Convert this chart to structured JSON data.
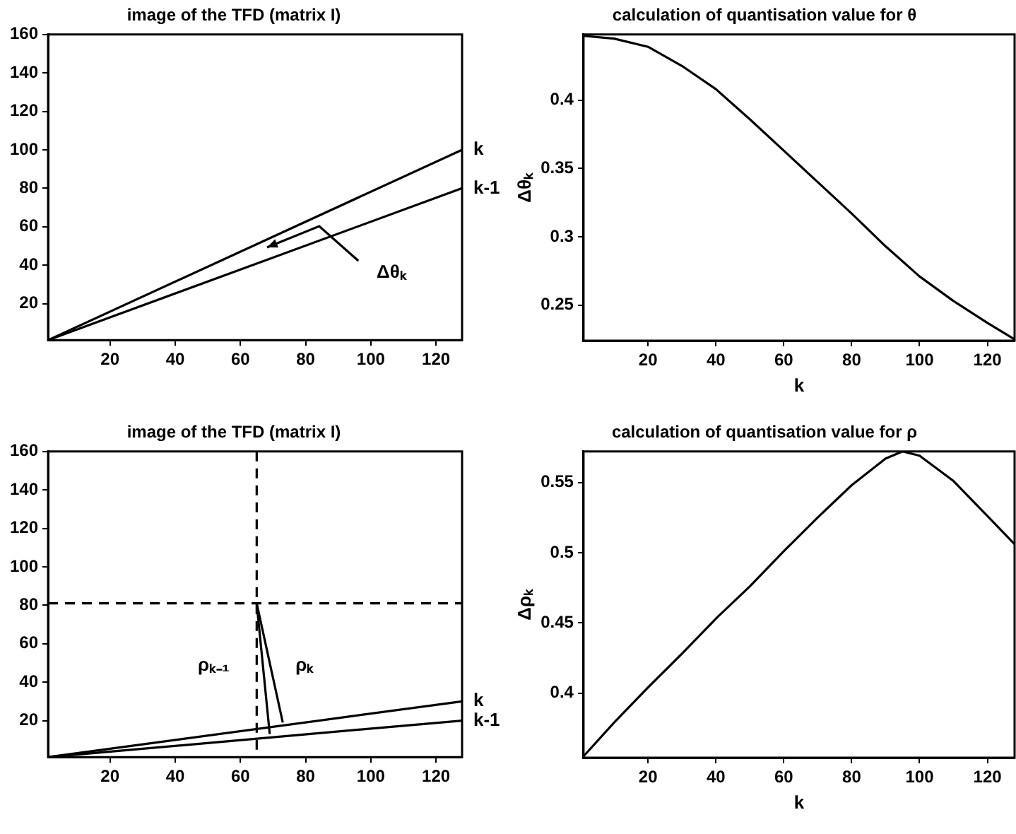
{
  "chart_data": [
    {
      "type": "line",
      "title": "image of the TFD (matrix I)",
      "x": [
        1,
        128
      ],
      "marker": "none",
      "series": [
        {
          "name": "k",
          "color": "#000000",
          "values": [
            1,
            100
          ]
        },
        {
          "name": "k-1",
          "color": "#000000",
          "values": [
            1,
            80
          ]
        }
      ],
      "xlim": [
        1,
        128
      ],
      "xticks": [
        20,
        40,
        60,
        80,
        100,
        120
      ],
      "ylim": [
        1,
        160
      ],
      "yticks": [
        20,
        40,
        60,
        80,
        100,
        120,
        140,
        160
      ],
      "annotations": [
        "Δθₖ"
      ]
    },
    {
      "type": "line",
      "title": "calculation of quantisation value for θ",
      "xlabel": "k",
      "ylabel": "Δθₖ",
      "marker": "none",
      "x": [
        1,
        10,
        20,
        30,
        40,
        50,
        60,
        70,
        80,
        90,
        100,
        110,
        120,
        128
      ],
      "series": [
        {
          "color": "#000000",
          "values": [
            0.447,
            0.445,
            0.439,
            0.425,
            0.408,
            0.386,
            0.363,
            0.34,
            0.317,
            0.293,
            0.271,
            0.253,
            0.237,
            0.225
          ]
        }
      ],
      "xlim": [
        1,
        128
      ],
      "xticks": [
        20,
        40,
        60,
        80,
        100,
        120
      ],
      "ylim": [
        0.224,
        0.448
      ],
      "yticks": [
        0.25,
        0.3,
        0.35,
        0.4
      ]
    },
    {
      "type": "line",
      "title": "image of the TFD (matrix I)",
      "x": [
        1,
        128
      ],
      "marker": "none",
      "series": [
        {
          "name": "k",
          "color": "#000000",
          "values": [
            1,
            30
          ]
        },
        {
          "name": "k-1",
          "color": "#000000",
          "values": [
            1,
            20
          ]
        },
        {
          "color": "#000000",
          "x": [
            65,
            69
          ],
          "values": [
            81,
            13
          ]
        },
        {
          "color": "#000000",
          "x": [
            65,
            73
          ],
          "values": [
            81,
            19
          ]
        }
      ],
      "xlim": [
        1,
        128
      ],
      "xticks": [
        20,
        40,
        60,
        80,
        100,
        120
      ],
      "ylim": [
        1,
        160
      ],
      "yticks": [
        20,
        40,
        60,
        80,
        100,
        120,
        140,
        160
      ],
      "ref_lines": [
        {
          "axis": "x",
          "value": 65,
          "line_style": "dashed",
          "color": "#000000"
        },
        {
          "axis": "y",
          "value": 81,
          "line_style": "dashed",
          "color": "#000000"
        }
      ],
      "annotations": [
        "ρₖ₋₁",
        "ρₖ"
      ]
    },
    {
      "type": "line",
      "title": "calculation of quantisation value for ρ",
      "xlabel": "k",
      "ylabel": "Δρₖ",
      "marker": "none",
      "x": [
        1,
        10,
        20,
        30,
        40,
        50,
        60,
        70,
        80,
        90,
        95,
        100,
        110,
        120,
        128
      ],
      "series": [
        {
          "color": "#000000",
          "values": [
            0.355,
            0.379,
            0.404,
            0.428,
            0.453,
            0.476,
            0.501,
            0.525,
            0.548,
            0.567,
            0.572,
            0.569,
            0.551,
            0.526,
            0.506
          ]
        }
      ],
      "xlim": [
        1,
        128
      ],
      "xticks": [
        20,
        40,
        60,
        80,
        100,
        120
      ],
      "ylim": [
        0.354,
        0.572
      ],
      "yticks": [
        0.4,
        0.45,
        0.5,
        0.55
      ]
    }
  ]
}
